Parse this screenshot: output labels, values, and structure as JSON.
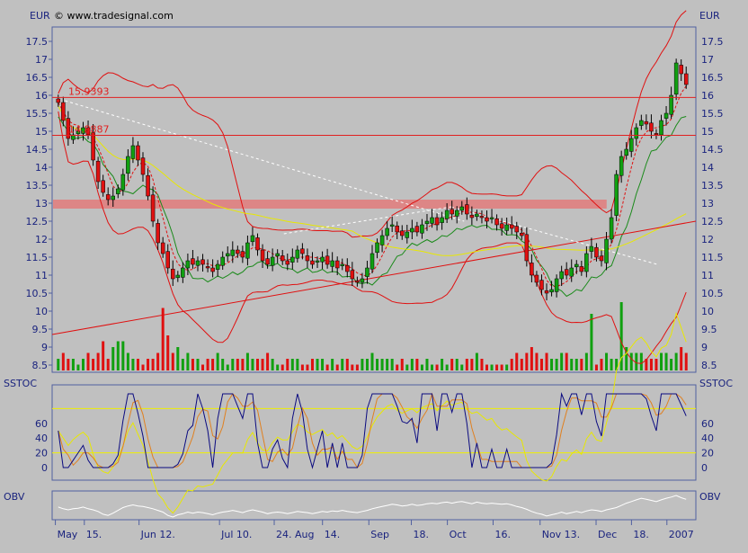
{
  "header": {
    "currency_left": "EUR",
    "currency_right": "EUR",
    "copyright": "© www.tradesignal.com"
  },
  "chart_data": [
    {
      "type": "candlestick",
      "panel": "price",
      "ylim": [
        8.3,
        17.9
      ],
      "y_ticks": [
        "17.5",
        "17",
        "16.5",
        "16",
        "15.5",
        "15",
        "14.5",
        "14",
        "13.5",
        "13",
        "12.5",
        "12",
        "11.5",
        "11",
        "10.5",
        "10",
        "9.5",
        "9",
        "8.5"
      ],
      "x_ticks": [
        "May",
        "15.",
        "Jun 12.",
        "Jul 10.",
        "24. Aug",
        "14.",
        "Sep",
        "18.",
        "Oct",
        "16.",
        "Nov 13.",
        "Dec",
        "18.",
        "2007"
      ],
      "horizontal_lines": [
        {
          "value": 15.9393,
          "label": "15.9393",
          "color": "#e02020"
        },
        {
          "value": 14.8887,
          "label": "14.8887",
          "color": "#e02020"
        }
      ],
      "resistance_zone": {
        "low": 12.85,
        "high": 13.1,
        "color": "#e08080"
      },
      "trendline_red": {
        "from_x": 0,
        "from_y": 9.35,
        "to_x": 1,
        "to_y": 12.5
      },
      "trendline_white_dashed": [
        {
          "from_x": 0.02,
          "from_y": 15.85,
          "to_x": 0.64,
          "to_y": 12.5
        },
        {
          "from_x": 0.36,
          "from_y": 12.15,
          "to_x": 0.62,
          "to_y": 12.9
        },
        {
          "from_x": 0.62,
          "from_y": 12.9,
          "to_x": 0.94,
          "to_y": 11.3
        }
      ],
      "close_series": [
        15.8,
        15.3,
        14.8,
        14.9,
        15.0,
        15.1,
        14.9,
        14.2,
        13.6,
        13.3,
        13.1,
        13.2,
        13.4,
        13.8,
        14.3,
        14.6,
        14.2,
        13.8,
        13.2,
        12.5,
        11.9,
        11.6,
        11.2,
        10.9,
        11.0,
        11.2,
        11.4,
        11.3,
        11.4,
        11.3,
        11.2,
        11.1,
        11.3,
        11.5,
        11.6,
        11.7,
        11.6,
        11.5,
        11.9,
        12.1,
        11.7,
        11.4,
        11.3,
        11.5,
        11.6,
        11.4,
        11.3,
        11.5,
        11.7,
        11.6,
        11.4,
        11.3,
        11.4,
        11.5,
        11.3,
        11.4,
        11.2,
        11.3,
        11.1,
        10.9,
        10.8,
        10.9,
        11.2,
        11.6,
        11.9,
        12.1,
        12.3,
        12.4,
        12.2,
        12.1,
        12.2,
        12.3,
        12.2,
        12.4,
        12.5,
        12.6,
        12.4,
        12.6,
        12.8,
        12.7,
        12.8,
        12.9,
        12.7,
        12.6,
        12.7,
        12.6,
        12.5,
        12.6,
        12.4,
        12.3,
        12.4,
        12.3,
        12.2,
        12.1,
        11.4,
        11.0,
        10.8,
        10.6,
        10.5,
        10.6,
        10.9,
        11.1,
        11.0,
        11.2,
        11.3,
        11.1,
        11.6,
        11.8,
        11.5,
        11.4,
        12.0,
        12.6,
        13.8,
        14.3,
        14.5,
        14.8,
        15.1,
        15.3,
        15.2,
        15.0,
        14.9,
        15.3,
        15.5,
        16.0,
        16.9,
        16.6,
        16.3
      ],
      "volume": [
        2,
        3,
        2,
        2,
        1,
        2,
        3,
        2,
        3,
        5,
        2,
        4,
        5,
        5,
        3,
        2,
        2,
        1,
        2,
        2,
        3,
        3,
        6,
        3,
        4,
        2,
        3,
        2,
        2,
        1,
        2,
        2,
        3,
        2,
        1,
        2,
        2,
        2,
        3,
        2,
        2,
        2,
        3,
        2,
        1,
        1,
        2,
        2,
        2,
        1,
        1,
        2,
        2,
        2,
        1,
        2,
        1,
        2,
        2,
        1,
        1,
        2,
        2,
        3,
        2,
        2,
        2,
        2,
        1,
        2,
        1,
        2,
        2,
        1,
        2,
        1,
        1,
        2,
        1,
        2,
        2,
        1,
        2,
        2,
        3,
        2,
        1,
        1,
        1,
        1,
        1,
        2,
        3,
        2,
        3,
        4,
        3,
        2,
        3,
        2,
        2,
        3,
        3,
        2,
        2,
        2,
        3,
        2,
        1,
        2,
        3,
        2,
        2,
        4,
        4,
        3,
        3,
        3,
        2,
        2,
        2,
        3,
        3,
        2,
        3,
        4,
        3
      ],
      "series": [
        {
          "kind": "bollinger",
          "color": "#e01010"
        },
        {
          "kind": "moving-average",
          "color": "#1a8a1a"
        },
        {
          "kind": "moving-average",
          "color": "#e8e800"
        },
        {
          "kind": "moving-average-dashed",
          "color": "#e01010"
        }
      ],
      "y_unit": "EUR"
    },
    {
      "type": "line",
      "panel": "stochastic",
      "title": "SSTOC",
      "ylim": [
        0,
        100
      ],
      "y_ticks": [
        "60",
        "40",
        "20",
        "0"
      ],
      "upper_band": 80,
      "lower_band": 20,
      "series": [
        {
          "kind": "fast",
          "color": "#0a0a80"
        },
        {
          "kind": "slow",
          "color": "#e08020"
        },
        {
          "kind": "signal",
          "color": "#e8e800"
        }
      ]
    },
    {
      "type": "line",
      "panel": "obv",
      "title": "OBV",
      "series": [
        {
          "kind": "obv",
          "color": "#ffffff"
        }
      ]
    }
  ]
}
